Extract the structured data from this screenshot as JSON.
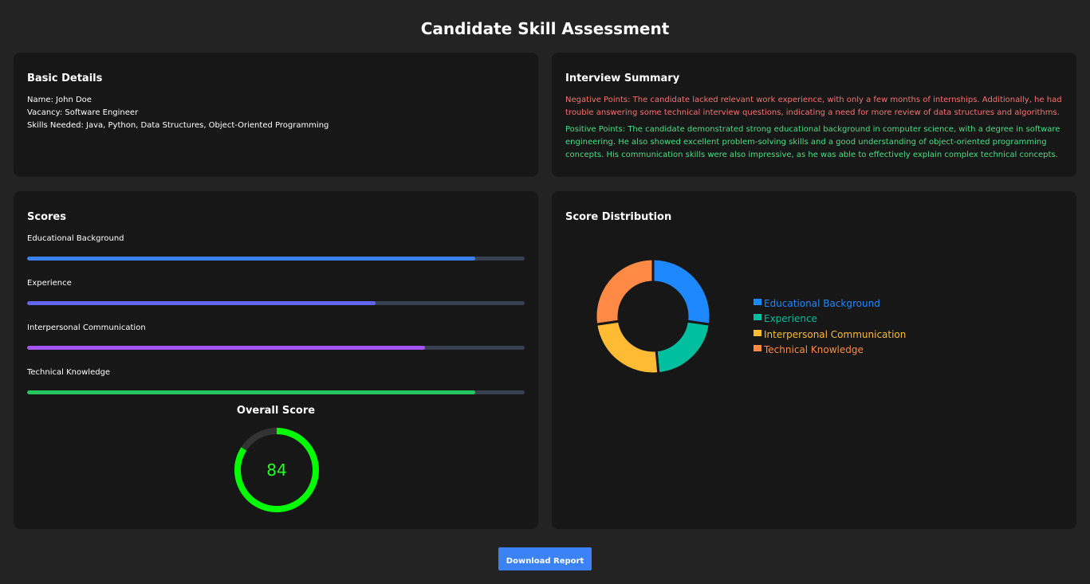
{
  "title": "Candidate Skill Assessment",
  "basic_details": {
    "title": "Basic Details",
    "lines": [
      "Name: John Doe",
      "Vacancy: Software Engineer",
      "Skills Needed: Java, Python, Data Structures, Object-Oriented Programming"
    ]
  },
  "interview_summary": {
    "title": "Interview Summary",
    "negative": "Negative Points: The candidate lacked relevant work experience, with only a few months of internships. Additionally, he had trouble answering some technical interview questions, indicating a need for more review of data structures and algorithms.",
    "positive": "Positive Points: The candidate demonstrated strong educational background in computer science, with a degree in software engineering. He also showed excellent problem-solving skills and a good understanding of object-oriented programming concepts. His communication skills were also impressive, as he was able to effectively explain complex technical concepts."
  },
  "scores": {
    "title": "Scores",
    "items": [
      {
        "label": "Educational Background",
        "value": 90,
        "color": "#3b82f6"
      },
      {
        "label": "Experience",
        "value": 70,
        "color": "#6366f1"
      },
      {
        "label": "Interpersonal Communication",
        "value": 80,
        "color": "#a855f7"
      },
      {
        "label": "Technical Knowledge",
        "value": 90,
        "color": "#22c55e"
      }
    ],
    "overall_title": "Overall Score",
    "overall_value": "84",
    "overall_color": "#00ff00"
  },
  "distribution": {
    "title": "Score Distribution",
    "chart_data": {
      "type": "pie",
      "categories": [
        "Educational Background",
        "Experience",
        "Interpersonal Communication",
        "Technical Knowledge"
      ],
      "values": [
        90,
        70,
        80,
        90
      ],
      "colors": [
        "#1e88ff",
        "#00bf9f",
        "#ffbb33",
        "#ff8a45"
      ],
      "legend": "right"
    }
  },
  "download_label": "Download Report"
}
